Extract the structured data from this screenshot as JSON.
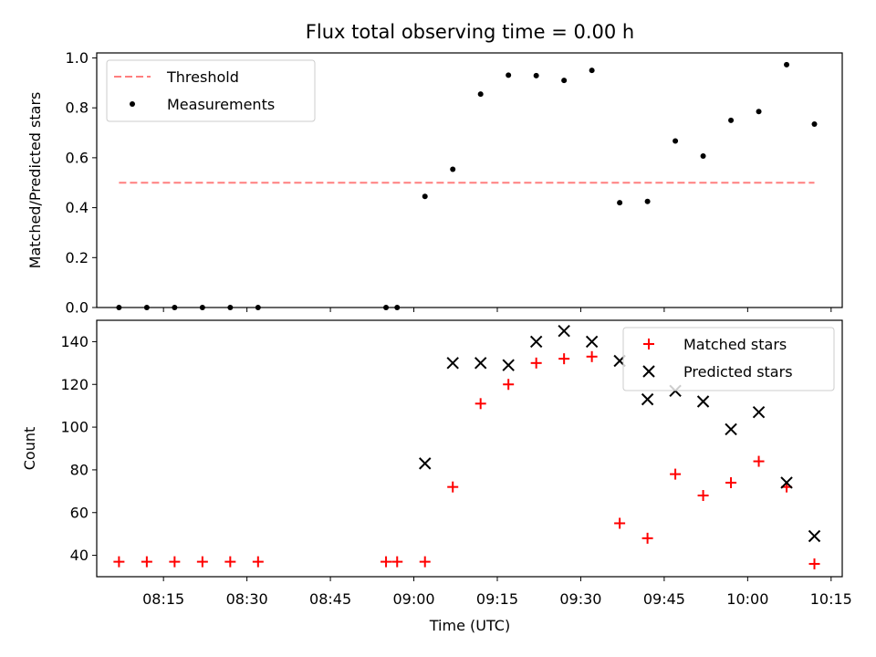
{
  "chart_data": {
    "type": "scatter",
    "title": "Flux total observing time = 0.00 h",
    "xlabel": "Time (UTC)",
    "x_ticks": [
      "08:15",
      "08:30",
      "08:45",
      "09:00",
      "09:15",
      "09:30",
      "09:45",
      "10:00",
      "10:15"
    ],
    "x_range": [
      "08:03",
      "10:17"
    ],
    "panels": [
      {
        "ylabel": "Matched/Predicted stars",
        "ylim": [
          0.0,
          1.02
        ],
        "y_ticks": [
          "0.0",
          "0.2",
          "0.4",
          "0.6",
          "0.8",
          "1.0"
        ],
        "legend_position": "top-left",
        "threshold": {
          "name": "Threshold",
          "value": 0.5,
          "x_start": "08:07",
          "x_end": "10:12",
          "color": "#ff7f7f"
        },
        "series": [
          {
            "name": "Measurements",
            "marker": "dot",
            "color": "#000000",
            "x": [
              "08:07",
              "08:12",
              "08:17",
              "08:22",
              "08:27",
              "08:32",
              "08:55",
              "08:57",
              "09:02",
              "09:07",
              "09:12",
              "09:17",
              "09:22",
              "09:27",
              "09:32",
              "09:37",
              "09:42",
              "09:47",
              "09:52",
              "09:57",
              "10:02",
              "10:07",
              "10:12"
            ],
            "values": [
              0.0,
              0.0,
              0.0,
              0.0,
              0.0,
              0.0,
              0.0,
              0.0,
              0.445,
              0.554,
              0.855,
              0.931,
              0.929,
              0.91,
              0.95,
              0.42,
              0.425,
              0.667,
              0.607,
              0.75,
              0.785,
              0.973,
              0.735
            ]
          }
        ]
      },
      {
        "ylabel": "Count",
        "ylim": [
          30,
          150
        ],
        "y_ticks": [
          "40",
          "60",
          "80",
          "100",
          "120",
          "140"
        ],
        "legend_position": "top-right",
        "series": [
          {
            "name": "Matched stars",
            "marker": "plus",
            "color": "#ff0000",
            "x": [
              "08:07",
              "08:12",
              "08:17",
              "08:22",
              "08:27",
              "08:32",
              "08:55",
              "08:57",
              "09:02",
              "09:07",
              "09:12",
              "09:17",
              "09:22",
              "09:27",
              "09:32",
              "09:37",
              "09:42",
              "09:47",
              "09:52",
              "09:57",
              "10:02",
              "10:07",
              "10:12"
            ],
            "values": [
              37,
              37,
              37,
              37,
              37,
              37,
              37,
              37,
              37,
              72,
              111,
              120,
              130,
              132,
              133,
              55,
              48,
              78,
              68,
              74,
              84,
              72,
              36
            ]
          },
          {
            "name": "Predicted stars",
            "marker": "x",
            "color": "#000000",
            "x": [
              "09:02",
              "09:07",
              "09:12",
              "09:17",
              "09:22",
              "09:27",
              "09:32",
              "09:37",
              "09:42",
              "09:47",
              "09:52",
              "09:57",
              "10:02",
              "10:07",
              "10:12"
            ],
            "values": [
              83,
              130,
              130,
              129,
              140,
              145,
              140,
              131,
              113,
              117,
              112,
              99,
              107,
              74,
              49
            ]
          }
        ]
      }
    ]
  }
}
